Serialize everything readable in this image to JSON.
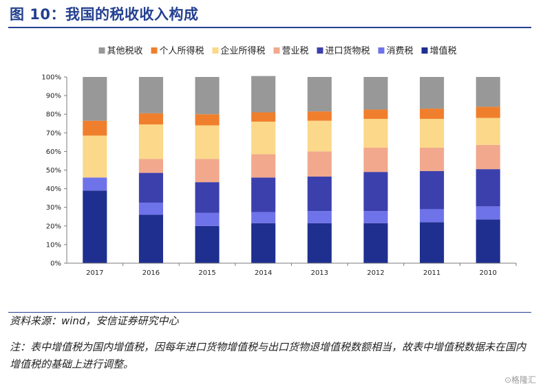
{
  "title": "图 10：我国的税收收入构成",
  "source": "资料来源：wind，安信证券研究中心",
  "note": "注：表中增值税为国内增值税，因每年进口货物增值税与出口货物退增值税数额相当，故表中增值税数据未在国内增值税的基础上进行调整。",
  "watermark": "⊙格隆汇",
  "chart_data": {
    "type": "bar",
    "stacked": true,
    "percent": true,
    "categories": [
      "2017",
      "2016",
      "2015",
      "2014",
      "2013",
      "2012",
      "2011",
      "2010"
    ],
    "ylim": [
      0,
      100
    ],
    "yticks": [
      "0%",
      "10%",
      "20%",
      "30%",
      "40%",
      "50%",
      "60%",
      "70%",
      "80%",
      "90%",
      "100%"
    ],
    "legend_position": "top",
    "series": [
      {
        "name": "增值税",
        "color": "#1f2f8f",
        "values": [
          39,
          26,
          20,
          21.5,
          21.5,
          21.5,
          22,
          23.5
        ]
      },
      {
        "name": "消费税",
        "color": "#6f73ea",
        "values": [
          7,
          6.5,
          7,
          6,
          6.5,
          6.5,
          7,
          7
        ]
      },
      {
        "name": "进口货物税",
        "color": "#3c40ad",
        "values": [
          0,
          16,
          16.5,
          18.5,
          18.5,
          21,
          20.5,
          20
        ]
      },
      {
        "name": "营业税",
        "color": "#f1a88d",
        "values": [
          0,
          7.5,
          12.5,
          12.5,
          13.5,
          13,
          12.5,
          13
        ]
      },
      {
        "name": "企业所得税",
        "color": "#fbd88a",
        "values": [
          22.5,
          18.5,
          18,
          17.5,
          16.5,
          15.5,
          15.5,
          14.5
        ]
      },
      {
        "name": "个人所得税",
        "color": "#f07f2d",
        "values": [
          8,
          6,
          6,
          5,
          5,
          5,
          5.5,
          6
        ]
      },
      {
        "name": "其他税收",
        "color": "#989898",
        "values": [
          23.5,
          19.5,
          20,
          19.5,
          18.5,
          17.5,
          17,
          16
        ]
      }
    ],
    "legend_order": [
      "其他税收",
      "个人所得税",
      "企业所得税",
      "营业税",
      "进口货物税",
      "消费税",
      "增值税"
    ]
  }
}
